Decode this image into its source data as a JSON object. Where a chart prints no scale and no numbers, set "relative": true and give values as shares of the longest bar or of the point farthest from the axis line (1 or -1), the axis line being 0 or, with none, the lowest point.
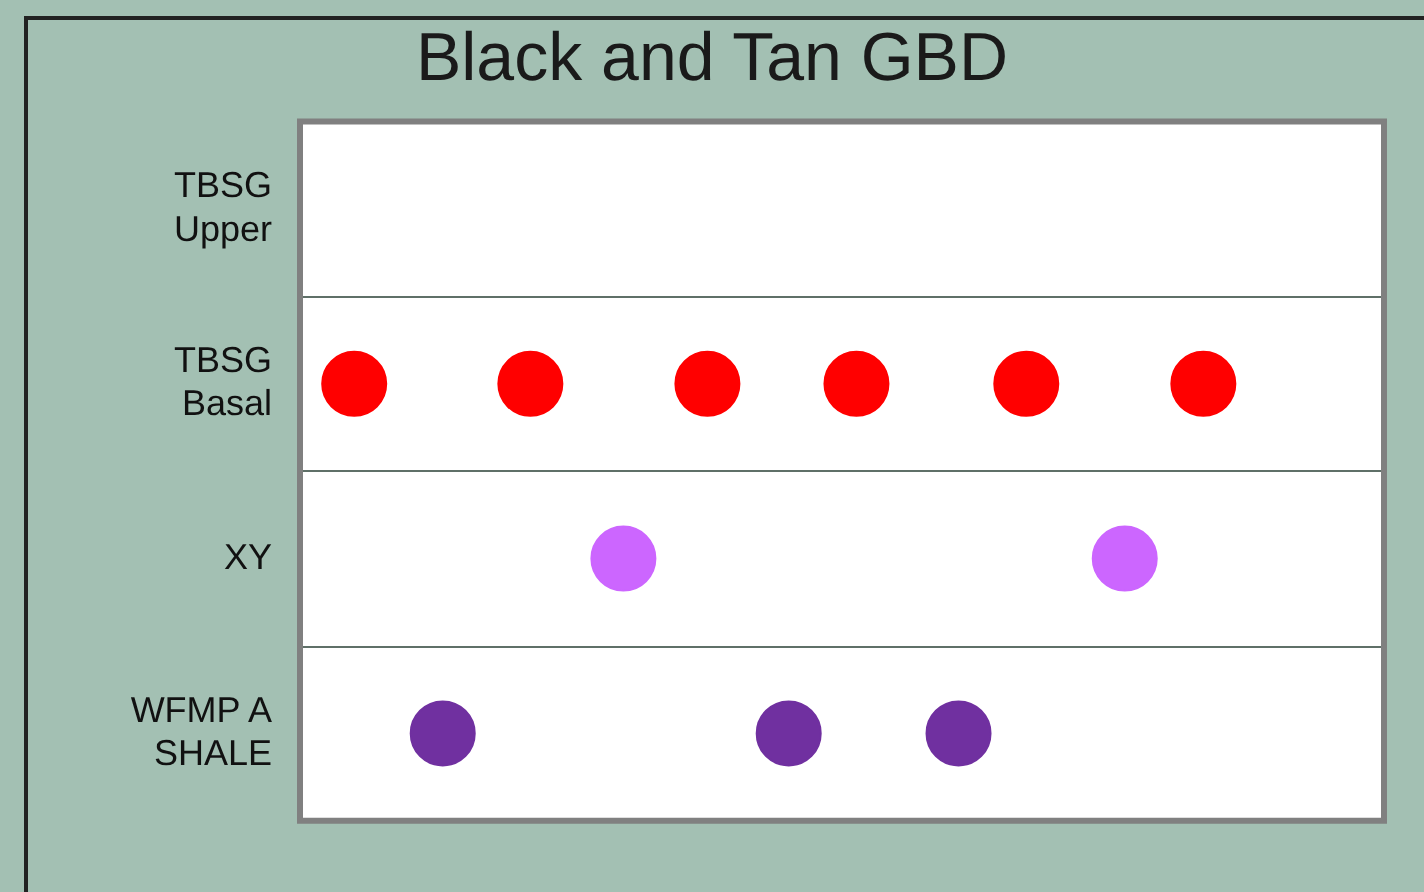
{
  "chart_data": {
    "type": "scatter",
    "title": "Black and Tan GBD",
    "orientation": "horizontal",
    "relative": true,
    "categories": [
      "TBSG Upper",
      "TBSG Basal",
      "XY",
      "WFMP A SHALE"
    ],
    "series": [
      {
        "colors": [
          null,
          "#ff0000",
          "#cc66ff",
          "#7030a0"
        ],
        "values": [
          null,
          0.06,
          0.358,
          0.158
        ]
      },
      {
        "colors": [
          null,
          "#ff0000",
          "#cc66ff",
          "#7030a0"
        ],
        "values": [
          null,
          0.255,
          0.913,
          0.541
        ]
      },
      {
        "colors": [
          null,
          "#ff0000",
          null,
          "#7030a0"
        ],
        "values": [
          null,
          0.451,
          null,
          0.729
        ]
      },
      {
        "colors": [
          null,
          "#ff0000",
          null,
          null
        ],
        "values": [
          null,
          0.616,
          null,
          null
        ]
      },
      {
        "colors": [
          null,
          "#ff0000",
          null,
          null
        ],
        "values": [
          null,
          0.804,
          null,
          null
        ]
      },
      {
        "colors": [
          null,
          "#ff0000",
          null,
          null
        ],
        "values": [
          null,
          1,
          null,
          null
        ]
      }
    ],
    "grid": "y",
    "legend": false,
    "marker": "circle",
    "tick_labels": "y"
  }
}
